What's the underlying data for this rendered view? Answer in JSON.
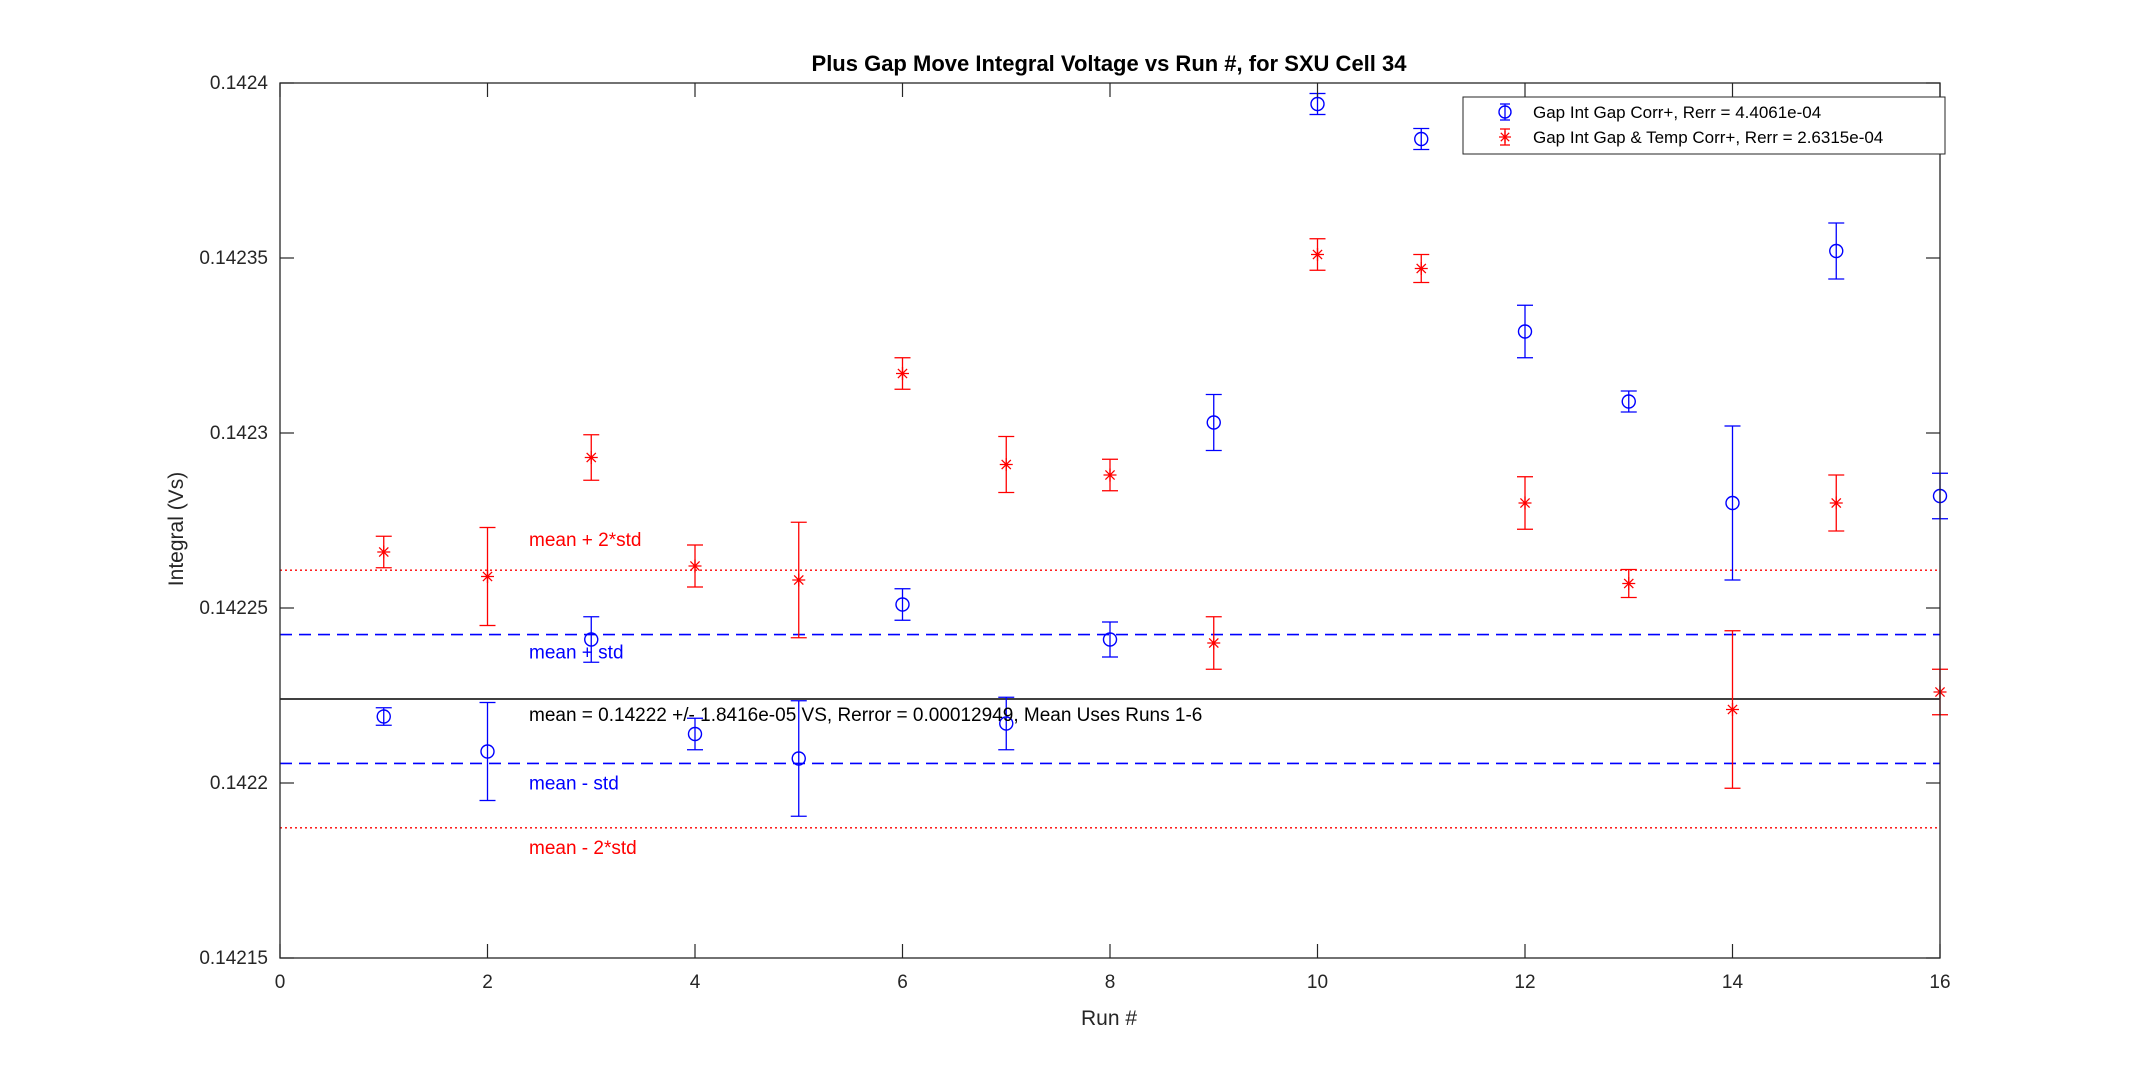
{
  "chart_data": {
    "type": "scatter",
    "title": "Plus Gap Move Integral Voltage vs Run #, for SXU Cell 34",
    "xlabel": "Run #",
    "ylabel": "Integral (Vs)",
    "xlim": [
      0,
      16
    ],
    "ylim": [
      0.14215,
      0.1424
    ],
    "xticks": [
      0,
      2,
      4,
      6,
      8,
      10,
      12,
      14,
      16
    ],
    "xtick_labels": [
      "0",
      "2",
      "4",
      "6",
      "8",
      "10",
      "12",
      "14",
      "16"
    ],
    "yticks": [
      0.14215,
      0.1422,
      0.14225,
      0.1423,
      0.14235,
      0.1424
    ],
    "ytick_labels": [
      "0.14215",
      "0.1422",
      "0.14225",
      "0.1423",
      "0.14235",
      "0.1424"
    ],
    "grid": false,
    "legend_position": "top-right",
    "series": [
      {
        "name": "Gap Int Gap Corr+, Rerr = 4.4061e-04",
        "color": "#0000ff",
        "marker": "circle",
        "x": [
          1,
          2,
          3,
          4,
          5,
          6,
          7,
          8,
          9,
          10,
          11,
          12,
          13,
          14,
          15,
          16
        ],
        "y": [
          0.142219,
          0.142209,
          0.142241,
          0.142214,
          0.142207,
          0.142251,
          0.142217,
          0.142241,
          0.142303,
          0.142394,
          0.142384,
          0.142329,
          0.142309,
          0.14228,
          0.142352,
          0.142282
        ],
        "err": [
          2.5e-06,
          1.4e-05,
          6.5e-06,
          4.5e-06,
          1.65e-05,
          4.5e-06,
          7.5e-06,
          5e-06,
          8e-06,
          3e-06,
          3e-06,
          7.5e-06,
          3e-06,
          2.2e-05,
          8e-06,
          6.5e-06
        ]
      },
      {
        "name": "Gap Int Gap & Temp  Corr+, Rerr = 2.6315e-04",
        "color": "#ff0000",
        "marker": "asterisk",
        "x": [
          1,
          2,
          3,
          4,
          5,
          6,
          7,
          8,
          9,
          10,
          11,
          12,
          13,
          14,
          15,
          16
        ],
        "y": [
          0.142266,
          0.142259,
          0.142293,
          0.142262,
          0.142258,
          0.142317,
          0.142291,
          0.142288,
          0.14224,
          0.142351,
          0.142347,
          0.14228,
          0.142257,
          0.142221,
          0.14228,
          0.142226
        ],
        "err": [
          4.5e-06,
          1.4e-05,
          6.5e-06,
          6e-06,
          1.65e-05,
          4.5e-06,
          8e-06,
          4.5e-06,
          7.5e-06,
          4.5e-06,
          4e-06,
          7.5e-06,
          4e-06,
          2.25e-05,
          8e-06,
          6.5e-06
        ]
      }
    ],
    "reference_lines": [
      {
        "y": 0.142224,
        "color": "#000000",
        "style": "solid",
        "label": "mean = 0.14222 +/- 1.8416e-05 VS, Rerror = 0.00012949, Mean Uses Runs 1-6"
      },
      {
        "y": 0.1422424,
        "color": "#0000ff",
        "style": "dashed",
        "label": "mean + std"
      },
      {
        "y": 0.1422056,
        "color": "#0000ff",
        "style": "dashed",
        "label": "mean - std"
      },
      {
        "y": 0.1422608,
        "color": "#ff0000",
        "style": "dotted",
        "label": "mean + 2*std"
      },
      {
        "y": 0.1421872,
        "color": "#ff0000",
        "style": "dotted",
        "label": "mean - 2*std"
      }
    ]
  }
}
